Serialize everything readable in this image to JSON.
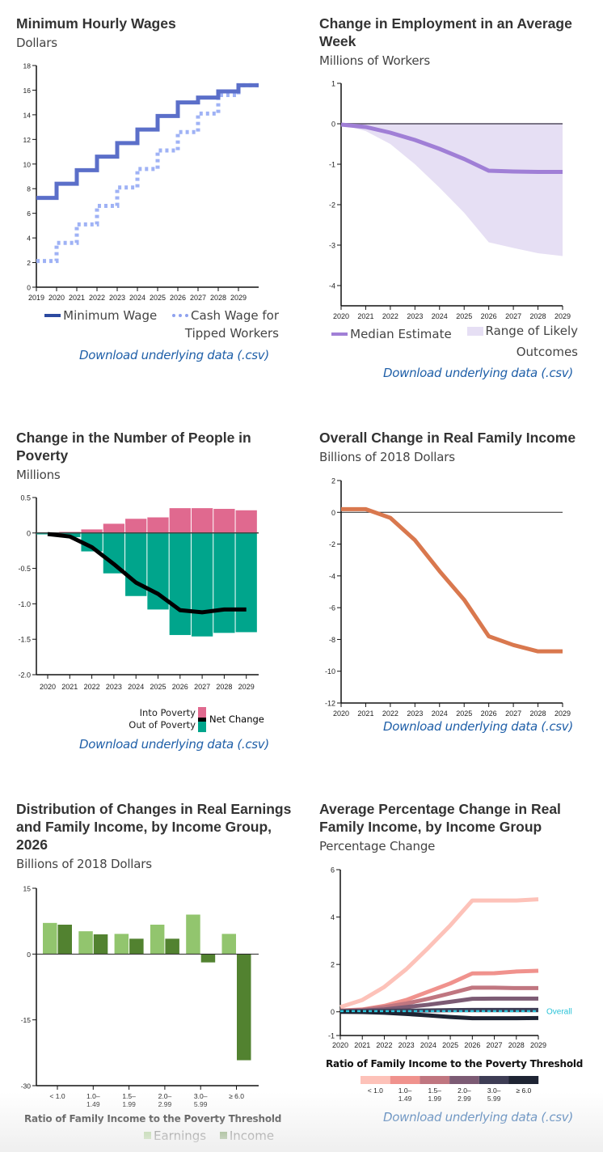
{
  "download_label": "Download underlying data (.csv)",
  "charts": {
    "wages": {
      "title": "Minimum Hourly Wages",
      "subtitle": "Dollars",
      "legend": {
        "min_wage": "Minimum Wage",
        "tipped_line1": "Cash Wage for",
        "tipped_line2": "Tipped Workers"
      }
    },
    "employment": {
      "title_line1": "Change in Employment in an Average",
      "title_line2": "Week",
      "subtitle": "Millions of Workers",
      "legend": {
        "median": "Median Estimate",
        "range_line1": "Range of Likely",
        "range_line2": "Outcomes"
      }
    },
    "poverty": {
      "title_line1": "Change in the Number of People in",
      "title_line2": "Poverty",
      "subtitle": "Millions",
      "legend": {
        "into": "Into Poverty",
        "out": "Out of Poverty",
        "net": "Net Change"
      }
    },
    "income": {
      "title": "Overall Change in Real Family Income",
      "subtitle": "Billions of 2018 Dollars"
    },
    "distribution": {
      "title_line1": "Distribution of Changes in Real Earnings",
      "title_line2": "and Family Income, by Income Group,",
      "title_line3": "2026",
      "subtitle": "Billions of 2018 Dollars",
      "xlabel": "Ratio of Family Income to the Poverty Threshold",
      "legend": {
        "earnings": "Earnings",
        "income": "Income"
      }
    },
    "pct": {
      "title_line1": "Average Percentage Change in Real",
      "title_line2": "Family Income, by Income Group",
      "subtitle": "Percentage Change",
      "xlabel": "Ratio of Family Income to the Poverty Threshold",
      "overall_label": "Overall"
    }
  },
  "chart_data": [
    {
      "id": "wages",
      "type": "line",
      "step": true,
      "title": "Minimum Hourly Wages",
      "ylabel": "Dollars",
      "ylim": [
        0,
        18
      ],
      "yticks": [
        0,
        2,
        4,
        6,
        8,
        10,
        12,
        14,
        16,
        18
      ],
      "x": [
        2019,
        2020,
        2021,
        2022,
        2023,
        2024,
        2025,
        2026,
        2027,
        2028,
        2029
      ],
      "xlim": [
        2019,
        2030
      ],
      "series": [
        {
          "name": "Minimum Wage",
          "color": "#5b6fc9",
          "dashed": false,
          "values": [
            7.25,
            8.4,
            9.5,
            10.6,
            11.7,
            12.8,
            13.9,
            15.0,
            15.4,
            15.9,
            16.4
          ]
        },
        {
          "name": "Cash Wage for Tipped Workers",
          "color": "#9fb2f5",
          "dashed": true,
          "values": [
            2.13,
            3.6,
            5.1,
            6.6,
            8.1,
            9.6,
            11.1,
            12.6,
            14.1,
            15.6,
            16.4
          ]
        }
      ]
    },
    {
      "id": "employment",
      "type": "area",
      "title": "Change in Employment in an Average Week",
      "ylabel": "Millions of Workers",
      "ylim": [
        -4.5,
        1
      ],
      "yticks": [
        1,
        0,
        -1,
        -2,
        -3,
        -4
      ],
      "x": [
        2020,
        2021,
        2022,
        2023,
        2024,
        2025,
        2026,
        2027,
        2028,
        2029
      ],
      "series": [
        {
          "name": "Median Estimate",
          "color": "#a07fd6",
          "values": [
            -0.02,
            -0.08,
            -0.22,
            -0.4,
            -0.62,
            -0.87,
            -1.16,
            -1.18,
            -1.19,
            -1.19
          ]
        },
        {
          "name": "Range of Likely Outcomes (upper)",
          "color": "#e6dff4",
          "values": [
            0,
            0,
            0,
            0,
            0,
            0,
            0,
            0,
            0,
            0
          ]
        },
        {
          "name": "Range of Likely Outcomes (lower)",
          "color": "#e6dff4",
          "values": [
            -0.02,
            -0.18,
            -0.5,
            -1.0,
            -1.58,
            -2.2,
            -2.93,
            -3.07,
            -3.2,
            -3.27
          ]
        }
      ]
    },
    {
      "id": "poverty",
      "type": "bar",
      "title": "Change in the Number of People in Poverty",
      "ylabel": "Millions",
      "ylim": [
        -2.0,
        0.5
      ],
      "yticks": [
        0.5,
        0,
        -0.5,
        -1.0,
        -1.5,
        -2.0
      ],
      "ytick_labels": [
        "0.5",
        "0",
        "-0.5",
        "-1.0",
        "-1.5",
        "-2.0"
      ],
      "categories": [
        "2020",
        "2021",
        "2022",
        "2023",
        "2024",
        "2025",
        "2026",
        "2027",
        "2028",
        "2029"
      ],
      "series": [
        {
          "name": "Into Poverty",
          "color": "#e0698f",
          "values": [
            0.005,
            0.015,
            0.05,
            0.13,
            0.2,
            0.22,
            0.35,
            0.35,
            0.34,
            0.32
          ]
        },
        {
          "name": "Out of Poverty",
          "color": "#00a58c",
          "values": [
            -0.02,
            -0.06,
            -0.26,
            -0.57,
            -0.89,
            -1.08,
            -1.44,
            -1.46,
            -1.41,
            -1.4
          ]
        },
        {
          "name": "Net Change",
          "color": "#000000",
          "type": "line",
          "values": [
            -0.015,
            -0.05,
            -0.2,
            -0.44,
            -0.7,
            -0.86,
            -1.09,
            -1.12,
            -1.08,
            -1.08
          ]
        }
      ]
    },
    {
      "id": "income",
      "type": "line",
      "title": "Overall Change in Real Family Income",
      "ylabel": "Billions of 2018 Dollars",
      "ylim": [
        -12,
        2
      ],
      "yticks": [
        2,
        0,
        -2,
        -4,
        -6,
        -8,
        -10,
        -12
      ],
      "x": [
        2020,
        2021,
        2022,
        2023,
        2024,
        2025,
        2026,
        2027,
        2028,
        2029
      ],
      "series": [
        {
          "name": "Overall Change",
          "color": "#d9784e",
          "values": [
            0.2,
            0.2,
            -0.35,
            -1.75,
            -3.7,
            -5.5,
            -7.8,
            -8.35,
            -8.75,
            -8.75
          ]
        }
      ]
    },
    {
      "id": "distribution",
      "type": "bar",
      "title": "Distribution of Changes in Real Earnings and Family Income, by Income Group, 2026",
      "ylabel": "Billions of 2018 Dollars",
      "xlabel": "Ratio of Family Income to the Poverty Threshold",
      "ylim": [
        -30,
        15
      ],
      "yticks": [
        15,
        0,
        -15,
        -30
      ],
      "categories": [
        [
          "< 1.0"
        ],
        [
          "1.0–",
          "1.49"
        ],
        [
          "1.5–",
          "1.99"
        ],
        [
          "2.0–",
          "2.99"
        ],
        [
          "3.0–",
          "5.99"
        ],
        [
          "≥ 6.0"
        ]
      ],
      "series": [
        {
          "name": "Earnings",
          "color": "#92c56e",
          "values": [
            7.1,
            5.2,
            4.6,
            6.7,
            9.0,
            4.6
          ]
        },
        {
          "name": "Income",
          "color": "#528230",
          "values": [
            6.7,
            4.5,
            3.5,
            3.5,
            -1.9,
            -24.2
          ]
        }
      ]
    },
    {
      "id": "pct",
      "type": "line",
      "title": "Average Percentage Change in Real Family Income, by Income Group",
      "ylabel": "Percentage Change",
      "xlabel": "Ratio of Family Income to the Poverty Threshold",
      "ylim": [
        -1,
        6
      ],
      "yticks": [
        6,
        4,
        2,
        0,
        -1
      ],
      "x": [
        2020,
        2021,
        2022,
        2023,
        2024,
        2025,
        2026,
        2027,
        2028,
        2029
      ],
      "series": [
        {
          "name": "< 1.0",
          "color": "#fdc2b9",
          "values": [
            0.2,
            0.5,
            1.05,
            1.8,
            2.7,
            3.65,
            4.7,
            4.7,
            4.7,
            4.75
          ]
        },
        {
          "name": "1.0–1.49",
          "color": "#f0928d",
          "values": [
            0.05,
            0.1,
            0.25,
            0.5,
            0.85,
            1.2,
            1.62,
            1.63,
            1.7,
            1.73
          ]
        },
        {
          "name": "1.5–1.99",
          "color": "#c07680",
          "values": [
            0.05,
            0.08,
            0.2,
            0.35,
            0.55,
            0.78,
            1.02,
            1.02,
            1.0,
            1.0
          ]
        },
        {
          "name": "2.0–2.99",
          "color": "#7c5b74",
          "values": [
            0.03,
            0.05,
            0.1,
            0.2,
            0.3,
            0.42,
            0.55,
            0.56,
            0.56,
            0.56
          ]
        },
        {
          "name": "3.0–5.99",
          "color": "#3e3d55",
          "values": [
            0.02,
            0.03,
            0.04,
            0.05,
            0.06,
            0.07,
            0.08,
            0.08,
            0.08,
            0.08
          ]
        },
        {
          "name": "≥ 6.0",
          "color": "#1e2433",
          "values": [
            0.0,
            -0.01,
            -0.04,
            -0.09,
            -0.15,
            -0.22,
            -0.27,
            -0.27,
            -0.27,
            -0.26
          ]
        },
        {
          "name": "Overall",
          "color": "#2bc3d8",
          "dashed": true,
          "values": [
            0.03,
            0.03,
            0.03,
            0.03,
            0.03,
            0.03,
            0.03,
            0.03,
            0.03,
            0.03
          ]
        }
      ]
    }
  ]
}
